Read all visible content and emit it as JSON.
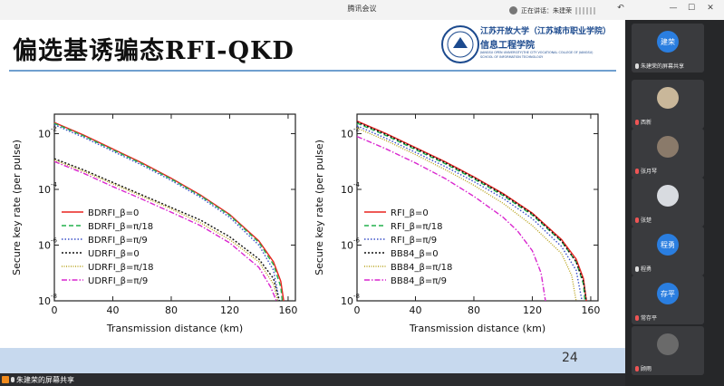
{
  "window": {
    "title": "腾讯会议",
    "speaking_label": "正在讲话：朱建荣"
  },
  "slide": {
    "title": "偏选基诱骗态RFI-QKD",
    "school_cn_1": "江苏开放大学（江苏城市职业学院）",
    "school_cn_2": "信息工程学院",
    "school_en_1": "JIANGSU OPEN UNIVERSITY(THE CITY VOCATIONAL COLLEGE OF JIANGSU)",
    "school_en_2": "SCHOOL OF INFORMATION TECHNOLOGY",
    "page_number": "24"
  },
  "chart_data": [
    {
      "type": "line",
      "xlabel": "Transmission distance (km)",
      "ylabel": "Secure key rate (per pulse)",
      "xlim": [
        0,
        165
      ],
      "ylim_log10": [
        -8,
        -1.3
      ],
      "y_scale": "log",
      "xticks": [
        "0",
        "40",
        "80",
        "120",
        "160"
      ],
      "yticks": [
        {
          "base": "10",
          "exp": "-2"
        },
        {
          "base": "10",
          "exp": "-4"
        },
        {
          "base": "10",
          "exp": "-6"
        },
        {
          "base": "10",
          "exp": "-8"
        }
      ],
      "legend_position": "bottom-left",
      "series": [
        {
          "name": "BDRFI_β=0",
          "color": "#e8231f",
          "dash": "",
          "x": [
            0,
            20,
            40,
            60,
            80,
            100,
            120,
            140,
            150,
            155,
            157
          ],
          "log10y": [
            -1.6,
            -2.05,
            -2.55,
            -3.05,
            -3.6,
            -4.2,
            -4.9,
            -5.85,
            -6.6,
            -7.3,
            -8
          ]
        },
        {
          "name": "BDRFI_β=π/18",
          "color": "#22b14c",
          "dash": "5,3",
          "x": [
            0,
            20,
            40,
            60,
            80,
            100,
            120,
            140,
            150,
            155,
            156
          ],
          "log10y": [
            -1.63,
            -2.08,
            -2.58,
            -3.08,
            -3.63,
            -4.23,
            -4.93,
            -5.9,
            -6.7,
            -7.5,
            -8
          ]
        },
        {
          "name": "BDRFI_β=π/9",
          "color": "#3a50c8",
          "dash": "1.5,2",
          "x": [
            0,
            20,
            40,
            60,
            80,
            100,
            120,
            140,
            150,
            154
          ],
          "log10y": [
            -1.68,
            -2.13,
            -2.63,
            -3.13,
            -3.68,
            -4.28,
            -5.0,
            -6.0,
            -6.9,
            -8
          ]
        },
        {
          "name": "UDRFI_β=0",
          "color": "#111111",
          "dash": "2,2",
          "x": [
            0,
            20,
            40,
            60,
            80,
            100,
            120,
            140,
            150,
            154
          ],
          "log10y": [
            -2.9,
            -3.3,
            -3.75,
            -4.2,
            -4.65,
            -5.1,
            -5.7,
            -6.5,
            -7.2,
            -8
          ]
        },
        {
          "name": "UDRFI_β=π/18",
          "color": "#b7a21a",
          "dash": "1,1.5",
          "x": [
            0,
            20,
            40,
            60,
            80,
            100,
            120,
            140,
            150,
            153
          ],
          "log10y": [
            -2.95,
            -3.35,
            -3.8,
            -4.25,
            -4.7,
            -5.2,
            -5.8,
            -6.6,
            -7.4,
            -8
          ]
        },
        {
          "name": "UDRFI_β=π/9",
          "color": "#d926cf",
          "dash": "6,2,1.5,2",
          "x": [
            0,
            20,
            40,
            60,
            80,
            100,
            120,
            140,
            148,
            152
          ],
          "log10y": [
            -3.0,
            -3.42,
            -3.9,
            -4.35,
            -4.82,
            -5.3,
            -5.92,
            -6.8,
            -7.5,
            -8
          ]
        }
      ]
    },
    {
      "type": "line",
      "xlabel": "Transmission distance (km)",
      "ylabel": "Secure key rate (per pulse)",
      "xlim": [
        0,
        165
      ],
      "ylim_log10": [
        -8,
        -1.3
      ],
      "y_scale": "log",
      "xticks": [
        "0",
        "40",
        "80",
        "120",
        "160"
      ],
      "yticks": [
        {
          "base": "10",
          "exp": "-2"
        },
        {
          "base": "10",
          "exp": "-4"
        },
        {
          "base": "10",
          "exp": "-6"
        },
        {
          "base": "10",
          "exp": "-8"
        }
      ],
      "legend_position": "bottom-left",
      "series": [
        {
          "name": "RFI_β=0",
          "color": "#e8231f",
          "dash": "",
          "x": [
            0,
            20,
            40,
            60,
            80,
            100,
            120,
            140,
            150,
            155,
            157
          ],
          "log10y": [
            -1.55,
            -2.0,
            -2.5,
            -3.0,
            -3.55,
            -4.15,
            -4.85,
            -5.8,
            -6.5,
            -7.2,
            -8
          ]
        },
        {
          "name": "RFI_β=π/18",
          "color": "#22b14c",
          "dash": "5,3",
          "x": [
            0,
            20,
            40,
            60,
            80,
            100,
            120,
            140,
            150,
            155,
            156
          ],
          "log10y": [
            -1.62,
            -2.07,
            -2.57,
            -3.07,
            -3.62,
            -4.22,
            -4.92,
            -5.87,
            -6.6,
            -7.4,
            -8
          ]
        },
        {
          "name": "RFI_β=π/9",
          "color": "#3a50c8",
          "dash": "1.5,2",
          "x": [
            0,
            20,
            40,
            60,
            80,
            100,
            120,
            140,
            150,
            154
          ],
          "log10y": [
            -1.72,
            -2.17,
            -2.67,
            -3.17,
            -3.72,
            -4.32,
            -5.05,
            -6.05,
            -6.9,
            -8
          ]
        },
        {
          "name": "BB84_β=0",
          "color": "#111111",
          "dash": "2,2",
          "x": [
            0,
            20,
            40,
            60,
            80,
            100,
            120,
            140,
            150,
            155,
            157
          ],
          "log10y": [
            -1.58,
            -2.03,
            -2.53,
            -3.03,
            -3.58,
            -4.18,
            -4.88,
            -5.85,
            -6.6,
            -7.3,
            -8
          ]
        },
        {
          "name": "BB84_β=π/18",
          "color": "#b7a21a",
          "dash": "1,1.5",
          "x": [
            0,
            20,
            40,
            60,
            80,
            100,
            120,
            140,
            147,
            150
          ],
          "log10y": [
            -1.8,
            -2.25,
            -2.75,
            -3.28,
            -3.85,
            -4.5,
            -5.3,
            -6.3,
            -7.1,
            -8
          ]
        },
        {
          "name": "BB84_β=π/9",
          "color": "#d926cf",
          "dash": "6,2,1.5,2",
          "x": [
            0,
            20,
            40,
            60,
            80,
            100,
            110,
            120,
            126,
            129
          ],
          "log10y": [
            -2.1,
            -2.55,
            -3.05,
            -3.6,
            -4.25,
            -5.0,
            -5.5,
            -6.2,
            -7.0,
            -8
          ]
        }
      ]
    }
  ],
  "participants": [
    {
      "label": "建荣",
      "name": "朱建荣的屏幕共享",
      "color": "#2a7ee0",
      "kind": "text",
      "mic": "on"
    },
    {
      "label": "",
      "name": "西新",
      "color": "#c9b79a",
      "kind": "photo",
      "mic": "muted"
    },
    {
      "label": "",
      "name": "张月琴",
      "color": "#8a7a6a",
      "kind": "photo",
      "mic": "muted"
    },
    {
      "label": "",
      "name": "张楚",
      "color": "#d8dbe0",
      "kind": "photo",
      "mic": "muted"
    },
    {
      "label": "程勇",
      "name": "程勇",
      "color": "#2a7ee0",
      "kind": "text",
      "mic": "on"
    },
    {
      "label": "存平",
      "name": "常存平",
      "color": "#2a7ee0",
      "kind": "text",
      "mic": "muted"
    },
    {
      "label": "",
      "name": "顾雨",
      "color": "#6a6a6a",
      "kind": "photo",
      "mic": "muted"
    }
  ],
  "share_badge": {
    "label": "朱建荣的屏幕共享"
  }
}
